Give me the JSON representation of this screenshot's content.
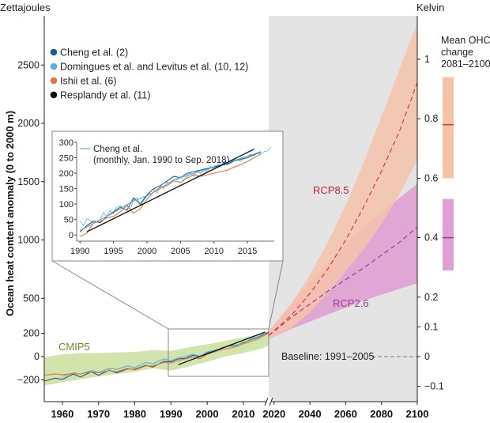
{
  "chart_data": {
    "type": "line",
    "left_axis_title": "Zettajoules",
    "right_axis_title": "Kelvin",
    "ylabel": "Ocean heat content anomaly (0 to 2000 m)",
    "xlim": [
      1955,
      2100
    ],
    "ylim": [
      -280,
      2890
    ],
    "x_ticks": [
      1960,
      1970,
      1980,
      1990,
      2000,
      2010,
      2020,
      2040,
      2060,
      2080,
      2100
    ],
    "x_tick_labels": [
      "1960",
      "1970",
      "1980",
      "1990",
      "2000",
      "2010",
      "2020",
      "2040",
      "2060",
      "2080",
      "2100"
    ],
    "y_ticks": [
      -200,
      0,
      200,
      500,
      1000,
      1500,
      2000,
      2500
    ],
    "y_tick_labels": [
      "−200",
      "0",
      "200",
      "500",
      "1000",
      "1500",
      "2000",
      "2500"
    ],
    "k_ticks": [
      -0.1,
      0,
      0.1,
      0.2,
      0.4,
      0.6,
      0.8,
      1
    ],
    "k_tick_labels": [
      "−0.1",
      "0",
      "0.1",
      "0.2",
      "0.4",
      "0.6",
      "0.8",
      "1"
    ],
    "future_shading_from_year": 2017,
    "legend": [
      {
        "label": "Cheng et al. (2)",
        "color": "#1b5c8c"
      },
      {
        "label": "Domingues et al. and Levitus et al. (10, 12)",
        "color": "#5aafdc"
      },
      {
        "label": "Ishii et al. (6)",
        "color": "#e8743b"
      },
      {
        "label": "Resplandy et al. (11)",
        "color": "#111111"
      }
    ],
    "annotations": {
      "cmip5": "CMIP5",
      "rcp85": "RCP8.5",
      "rcp26": "RCP2.6",
      "baseline": "Baseline: 1991–2005"
    },
    "colors": {
      "cmip5": "#c9df9c",
      "cmip5_text": "#6b8a2b",
      "rcp85_band": "#f5c3a9",
      "rcp85_line": "#d13b3b",
      "rcp85_text": "#c8202f",
      "rcp26_band": "#dfa0d3",
      "rcp26_line": "#9b3c8e",
      "rcp26_text": "#9b3c8e",
      "future_bg": "#e4e4e4"
    },
    "cmip5_band": {
      "x": [
        1955,
        1960,
        1965,
        1970,
        1975,
        1980,
        1985,
        1990,
        1995,
        2000,
        2005,
        2010,
        2015,
        2017
      ],
      "upper": [
        -5,
        20,
        30,
        30,
        35,
        40,
        55,
        50,
        80,
        105,
        135,
        165,
        195,
        215
      ],
      "lower": [
        -250,
        -220,
        -195,
        -170,
        -150,
        -130,
        -100,
        -120,
        -85,
        -45,
        0,
        30,
        70,
        95
      ]
    },
    "rcp85": {
      "x": [
        2017,
        2030,
        2040,
        2050,
        2060,
        2070,
        2080,
        2090,
        2100
      ],
      "upper": [
        220,
        460,
        700,
        980,
        1300,
        1660,
        2060,
        2460,
        2860
      ],
      "mean": [
        180,
        360,
        540,
        750,
        1000,
        1280,
        1590,
        1930,
        2350
      ],
      "lower": [
        145,
        250,
        380,
        540,
        730,
        920,
        1140,
        1390,
        1680
      ]
    },
    "rcp26": {
      "x": [
        2017,
        2030,
        2040,
        2050,
        2060,
        2070,
        2080,
        2090,
        2100
      ],
      "upper": [
        210,
        460,
        640,
        800,
        960,
        1110,
        1240,
        1360,
        1480
      ],
      "mean": [
        180,
        340,
        450,
        560,
        660,
        760,
        870,
        980,
        1110
      ],
      "lower": [
        150,
        240,
        300,
        360,
        420,
        480,
        530,
        580,
        630
      ]
    },
    "series": [
      {
        "name": "Cheng et al. (2)",
        "x": [
          1955,
          1958,
          1960,
          1963,
          1965,
          1968,
          1970,
          1973,
          1975,
          1978,
          1980,
          1983,
          1985,
          1988,
          1990,
          1992,
          1994,
          1996,
          1998,
          2000,
          2002,
          2004,
          2006,
          2008,
          2010,
          2012,
          2014,
          2016,
          2017
        ],
        "values": [
          -210,
          -185,
          -195,
          -150,
          -175,
          -130,
          -160,
          -115,
          -140,
          -105,
          -110,
          -75,
          -90,
          -40,
          -45,
          -20,
          -15,
          10,
          0,
          35,
          45,
          75,
          90,
          95,
          120,
          145,
          165,
          195,
          205
        ]
      },
      {
        "name": "Domingues et al. and Levitus et al. (10, 12)",
        "x": [
          1960,
          1963,
          1965,
          1968,
          1970,
          1973,
          1975,
          1978,
          1980,
          1983,
          1985,
          1988,
          1990,
          1992,
          1994,
          1996,
          1998,
          2000,
          2002,
          2004,
          2006,
          2008,
          2010,
          2012,
          2014,
          2016,
          2017
        ],
        "values": [
          -170,
          -140,
          -150,
          -120,
          -135,
          -100,
          -110,
          -80,
          -95,
          -50,
          -60,
          -20,
          -35,
          -10,
          0,
          20,
          5,
          40,
          55,
          70,
          95,
          100,
          115,
          150,
          170,
          200,
          215
        ]
      },
      {
        "name": "Ishii et al. (6)",
        "x": [
          1955,
          1958,
          1960,
          1963,
          1965,
          1968,
          1970,
          1973,
          1975,
          1978,
          1980,
          1983,
          1985,
          1988,
          1990,
          1992,
          1994,
          1996,
          1998,
          2000,
          2002,
          2004,
          2006,
          2008,
          2010,
          2012,
          2014,
          2016,
          2017
        ],
        "values": [
          -160,
          -150,
          -155,
          -145,
          -150,
          -130,
          -140,
          -120,
          -130,
          -100,
          -115,
          -80,
          -80,
          -50,
          -55,
          -35,
          -20,
          -5,
          -20,
          20,
          40,
          60,
          70,
          85,
          110,
          130,
          150,
          185,
          200
        ]
      },
      {
        "name": "Resplandy et al. (11)",
        "x": [
          1992,
          2016
        ],
        "values": [
          -70,
          210
        ]
      }
    ],
    "inset": {
      "title_line1": "Cheng et al.",
      "title_line2": "(monthly, Jan. 1990 to Sep. 2018)",
      "xlim": [
        1989.5,
        2019
      ],
      "ylim": [
        -20,
        300
      ],
      "x_ticks": [
        1990,
        1995,
        2000,
        2005,
        2010,
        2015
      ],
      "x_tick_labels": [
        "1990",
        "1995",
        "2000",
        "2005",
        "2010",
        "2015"
      ],
      "y_ticks": [
        0,
        50,
        100,
        150,
        200,
        250,
        300
      ],
      "y_tick_labels": [
        "0",
        "50",
        "100",
        "150",
        "200",
        "250",
        "300"
      ],
      "series": [
        {
          "name": "Cheng monthly",
          "x": [
            1990.0,
            1990.5,
            1991.0,
            1991.5,
            1992.0,
            1992.5,
            1993.0,
            1993.5,
            1994.0,
            1994.5,
            1995.0,
            1995.5,
            1996.0,
            1996.5,
            1997.0,
            1997.5,
            1998.0,
            1998.5,
            1999.0,
            1999.5,
            2000.0,
            2000.5,
            2001.0,
            2001.5,
            2002.0,
            2002.5,
            2003.0,
            2003.5,
            2004.0,
            2004.5,
            2005.0,
            2005.5,
            2006.0,
            2006.5,
            2007.0,
            2007.5,
            2008.0,
            2008.5,
            2009.0,
            2009.5,
            2010.0,
            2010.5,
            2011.0,
            2011.5,
            2012.0,
            2012.5,
            2013.0,
            2013.5,
            2014.0,
            2014.5,
            2015.0,
            2015.5,
            2016.0,
            2016.5,
            2017.0,
            2017.5,
            2018.0,
            2018.5
          ],
          "values": [
            45,
            30,
            52,
            48,
            40,
            44,
            50,
            72,
            60,
            80,
            68,
            90,
            96,
            85,
            100,
            80,
            115,
            120,
            95,
            110,
            125,
            140,
            150,
            135,
            160,
            150,
            172,
            165,
            180,
            178,
            190,
            175,
            195,
            200,
            190,
            210,
            198,
            215,
            205,
            222,
            212,
            225,
            220,
            238,
            228,
            232,
            240,
            245,
            238,
            250,
            255,
            262,
            258,
            266,
            262,
            270,
            272,
            285
          ]
        },
        {
          "name": "Cheng et al. (2)",
          "x": [
            1990,
            1991,
            1992,
            1993,
            1994,
            1995,
            1996,
            1997,
            1998,
            1999,
            2000,
            2001,
            2002,
            2003,
            2004,
            2005,
            2006,
            2007,
            2008,
            2009,
            2010,
            2011,
            2012,
            2013,
            2014,
            2015,
            2016,
            2017
          ],
          "values": [
            10,
            30,
            45,
            40,
            60,
            75,
            90,
            80,
            120,
            100,
            130,
            150,
            160,
            175,
            190,
            185,
            200,
            205,
            210,
            215,
            220,
            225,
            230,
            240,
            245,
            250,
            260,
            268
          ]
        },
        {
          "name": "Domingues et al. and Levitus et al. (10, 12)",
          "x": [
            1990,
            1991,
            1992,
            1993,
            1994,
            1995,
            1996,
            1997,
            1998,
            1999,
            2000,
            2001,
            2002,
            2003,
            2004,
            2005,
            2006,
            2007,
            2008,
            2009,
            2010,
            2011,
            2012,
            2013,
            2014,
            2015,
            2016,
            2017
          ],
          "values": [
            15,
            25,
            38,
            50,
            60,
            72,
            85,
            98,
            110,
            118,
            128,
            138,
            150,
            165,
            178,
            186,
            192,
            200,
            205,
            212,
            222,
            230,
            235,
            242,
            248,
            255,
            262,
            270
          ]
        },
        {
          "name": "Ishii et al. (6)",
          "x": [
            1990,
            1991,
            1992,
            1993,
            1994,
            1995,
            1996,
            1997,
            1998,
            1999,
            2000,
            2001,
            2002,
            2003,
            2004,
            2005,
            2006,
            2007,
            2008,
            2009,
            2010,
            2011,
            2012,
            2013,
            2014,
            2015,
            2016,
            2017
          ],
          "values": [
            -5,
            5,
            40,
            45,
            55,
            60,
            75,
            95,
            70,
            85,
            115,
            140,
            155,
            160,
            175,
            170,
            185,
            195,
            190,
            195,
            200,
            205,
            210,
            220,
            228,
            238,
            250,
            262
          ]
        },
        {
          "name": "Resplandy et al. (11)",
          "x": [
            1991,
            2016
          ],
          "values": [
            10,
            278
          ]
        }
      ]
    },
    "side_panel": {
      "title_line1": "Mean OHC",
      "title_line2": "change",
      "title_line3": "2081–2100",
      "rcp85_range_k": [
        0.6,
        0.94
      ],
      "rcp85_mean_k": 0.78,
      "rcp26_range_k": [
        0.29,
        0.53
      ],
      "rcp26_mean_k": 0.4
    }
  }
}
